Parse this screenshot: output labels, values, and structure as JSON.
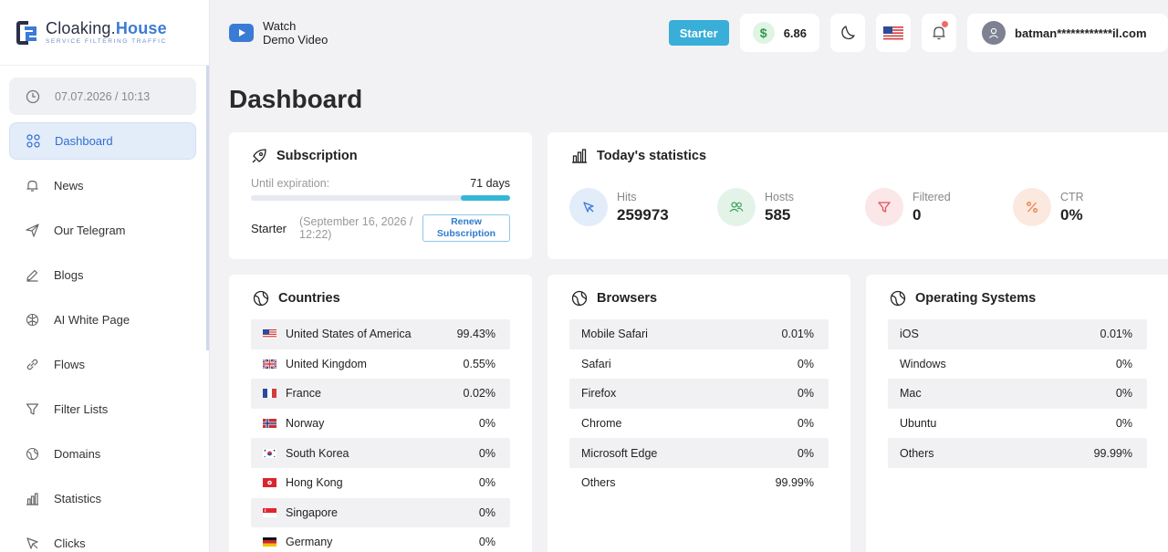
{
  "logo": {
    "title_a": "Cloaking.",
    "title_b": "House",
    "subtitle": "SERVICE FILTERING TRAFFIC"
  },
  "sidebar": {
    "datetime": "07.07.2026 / 10:13",
    "items": [
      {
        "label": "Dashboard",
        "icon": "grid-icon"
      },
      {
        "label": "News",
        "icon": "bell-icon"
      },
      {
        "label": "Our Telegram",
        "icon": "send-icon"
      },
      {
        "label": "Blogs",
        "icon": "pencil-icon"
      },
      {
        "label": "AI White Page",
        "icon": "ai-icon"
      },
      {
        "label": "Flows",
        "icon": "link-icon"
      },
      {
        "label": "Filter Lists",
        "icon": "filter-icon"
      },
      {
        "label": "Domains",
        "icon": "globe-icon"
      },
      {
        "label": "Statistics",
        "icon": "bar-chart-icon"
      },
      {
        "label": "Clicks",
        "icon": "cursor-icon"
      }
    ]
  },
  "topbar": {
    "watch_line1": "Watch",
    "watch_line2": "Demo Video",
    "plan_button": "Starter",
    "balance_symbol": "$",
    "balance": "6.86",
    "user_email": "batman************il.com"
  },
  "page": {
    "title": "Dashboard"
  },
  "subscription": {
    "title": "Subscription",
    "until_label": "Until expiration:",
    "days": "71 days",
    "progress_fraction": 0.19,
    "plan": "Starter",
    "date": "(September 16, 2026 / 12:22)",
    "renew_button": "Renew Subscription"
  },
  "today": {
    "title": "Today's statistics",
    "stats": [
      {
        "label": "Hits",
        "value": "259973"
      },
      {
        "label": "Hosts",
        "value": "585"
      },
      {
        "label": "Filtered",
        "value": "0"
      },
      {
        "label": "CTR",
        "value": "0%"
      }
    ]
  },
  "countries": {
    "title": "Countries",
    "rows": [
      {
        "name": "United States of America",
        "value": "99.43%",
        "flag": "us"
      },
      {
        "name": "United Kingdom",
        "value": "0.55%",
        "flag": "gb"
      },
      {
        "name": "France",
        "value": "0.02%",
        "flag": "fr"
      },
      {
        "name": "Norway",
        "value": "0%",
        "flag": "no"
      },
      {
        "name": "South Korea",
        "value": "0%",
        "flag": "kr"
      },
      {
        "name": "Hong Kong",
        "value": "0%",
        "flag": "hk"
      },
      {
        "name": "Singapore",
        "value": "0%",
        "flag": "sg"
      },
      {
        "name": "Germany",
        "value": "0%",
        "flag": "de"
      }
    ]
  },
  "browsers": {
    "title": "Browsers",
    "rows": [
      {
        "name": "Mobile Safari",
        "value": "0.01%"
      },
      {
        "name": "Safari",
        "value": "0%"
      },
      {
        "name": "Firefox",
        "value": "0%"
      },
      {
        "name": "Chrome",
        "value": "0%"
      },
      {
        "name": "Microsoft Edge",
        "value": "0%"
      },
      {
        "name": "Others",
        "value": "99.99%"
      }
    ]
  },
  "os": {
    "title": "Operating Systems",
    "rows": [
      {
        "name": "iOS",
        "value": "0.01%"
      },
      {
        "name": "Windows",
        "value": "0%"
      },
      {
        "name": "Mac",
        "value": "0%"
      },
      {
        "name": "Ubuntu",
        "value": "0%"
      },
      {
        "name": "Others",
        "value": "99.99%"
      }
    ]
  },
  "colors": {
    "accent": "#3a7bd5",
    "plan_button": "#38aed8",
    "progress": "#35b8d8"
  }
}
